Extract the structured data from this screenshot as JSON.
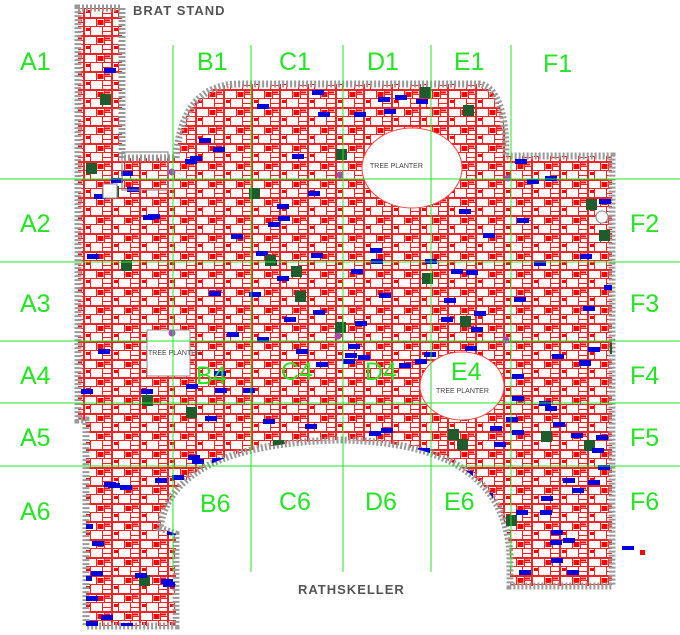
{
  "labels": {
    "top": "BRAT STAND",
    "bottom": "RATHSKELLER",
    "planter": "TREE PLANTER"
  },
  "grid_cells": [
    {
      "label": "A1"
    },
    {
      "label": "B1"
    },
    {
      "label": "C1"
    },
    {
      "label": "D1"
    },
    {
      "label": "E1"
    },
    {
      "label": "F1"
    },
    {
      "label": "A2"
    },
    {
      "label": "F2"
    },
    {
      "label": "A3"
    },
    {
      "label": "F3"
    },
    {
      "label": "A4"
    },
    {
      "label": "B4"
    },
    {
      "label": "C4"
    },
    {
      "label": "D4"
    },
    {
      "label": "E4"
    },
    {
      "label": "F4"
    },
    {
      "label": "A5"
    },
    {
      "label": "F5"
    },
    {
      "label": "A6"
    },
    {
      "label": "B6"
    },
    {
      "label": "C6"
    },
    {
      "label": "D6"
    },
    {
      "label": "E6"
    },
    {
      "label": "F6"
    }
  ],
  "colors": {
    "brick_outline": "#ff0000",
    "brick_fill": "#ff0000",
    "highlight_blue": "#0000dd",
    "highlight_green": "#1e5c2e",
    "grid_line": "#22e622",
    "border": "#888888",
    "marker": "#a050b0"
  }
}
